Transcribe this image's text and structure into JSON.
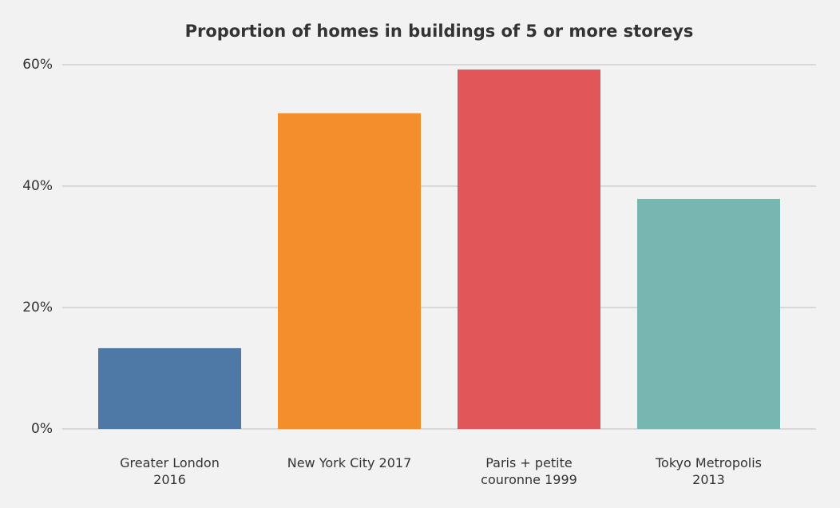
{
  "chart_data": {
    "type": "bar",
    "title": "Proportion of homes in buildings of 5 or more storeys",
    "categories": [
      "Greater London 2016",
      "New York City 2017",
      "Paris + petite couronne 1999",
      "Tokyo Metropolis 2013"
    ],
    "values": [
      13.3,
      52.0,
      59.2,
      37.9
    ],
    "colors": [
      "#4e79a7",
      "#f28e2b",
      "#e15759",
      "#76b7b2"
    ],
    "ylim": [
      0,
      60
    ],
    "yticks": [
      {
        "value": 0,
        "label": "0%"
      },
      {
        "value": 20,
        "label": "20%"
      },
      {
        "value": 40,
        "label": "40%"
      },
      {
        "value": 60,
        "label": "60%"
      }
    ],
    "grid": true
  }
}
